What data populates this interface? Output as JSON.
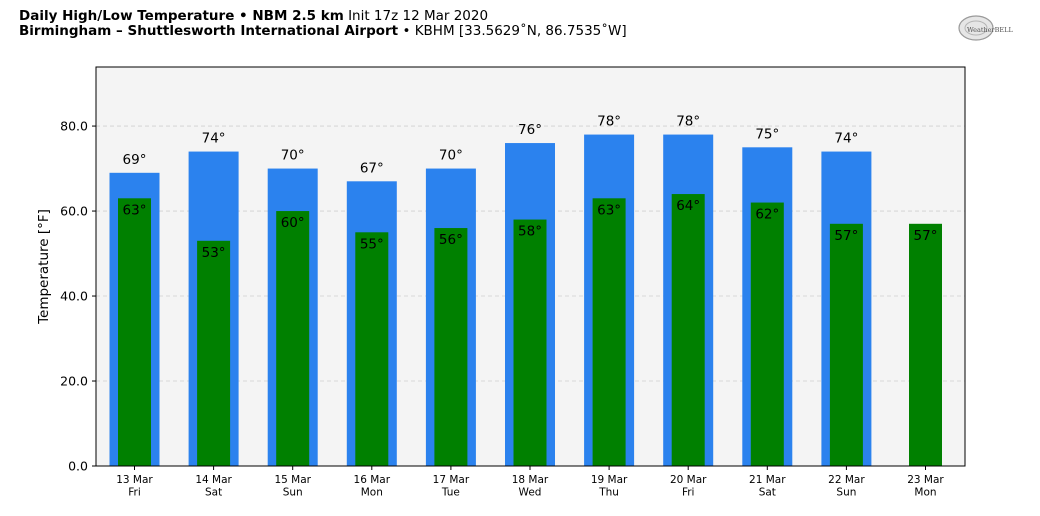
{
  "header": {
    "title_bold": "Daily High/Low Temperature • NBM 2.5 km",
    "title_init": "Init 17z 12 Mar 2020",
    "location_bold": "Birmingham – Shuttlesworth International Airport",
    "location_rest": "• KBHM [33.5629˚N, 86.7535˚W]"
  },
  "logo": {
    "text": "WeatherBELL"
  },
  "chart_data": {
    "type": "bar",
    "ylabel": "Temperature [°F]",
    "ylim": [
      0,
      93.9
    ],
    "yticks": [
      0,
      20,
      40,
      60,
      80
    ],
    "ytick_labels": [
      "0.0",
      "20.0",
      "40.0",
      "60.0",
      "80.0"
    ],
    "grid": true,
    "categories": [
      "13 Mar",
      "14 Mar",
      "15 Mar",
      "16 Mar",
      "17 Mar",
      "18 Mar",
      "19 Mar",
      "20 Mar",
      "21 Mar",
      "22 Mar",
      "23 Mar"
    ],
    "days": [
      "Fri",
      "Sat",
      "Sun",
      "Mon",
      "Tue",
      "Wed",
      "Thu",
      "Fri",
      "Sat",
      "Sun",
      "Mon"
    ],
    "series": [
      {
        "key": "high",
        "color": "#2b82ee",
        "values": [
          69,
          74,
          70,
          67,
          70,
          76,
          78,
          78,
          75,
          74,
          null
        ],
        "labels": [
          "69°",
          "74°",
          "70°",
          "67°",
          "70°",
          "76°",
          "78°",
          "78°",
          "75°",
          "74°",
          ""
        ]
      },
      {
        "key": "low",
        "color": "#008000",
        "values": [
          63,
          53,
          60,
          55,
          56,
          58,
          63,
          64,
          62,
          57,
          57
        ],
        "labels": [
          "63°",
          "53°",
          "60°",
          "55°",
          "56°",
          "58°",
          "63°",
          "64°",
          "62°",
          "57°",
          "57°"
        ]
      }
    ],
    "plot_background": "#f4f4f4"
  }
}
